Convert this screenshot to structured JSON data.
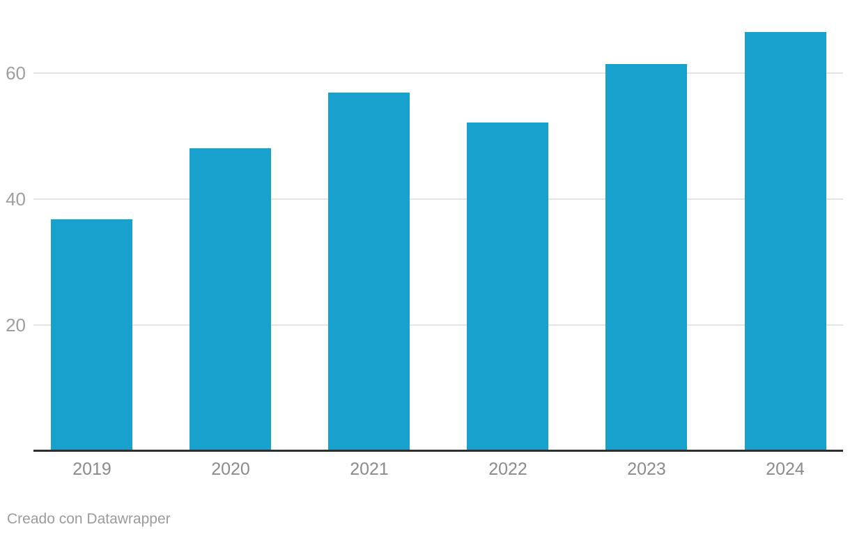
{
  "chart_data": {
    "type": "bar",
    "title": "",
    "xlabel": "",
    "ylabel": "",
    "categories": [
      "2019",
      "2020",
      "2021",
      "2022",
      "2023",
      "2024"
    ],
    "values": [
      36.7,
      48.0,
      56.8,
      52.1,
      61.4,
      66.5
    ],
    "ylim": [
      0,
      68
    ],
    "yticks": [
      20,
      40,
      60
    ],
    "grid": true,
    "legend": "none",
    "bar_color": "#18a1cd"
  },
  "colors": {
    "bar": "#18a1cd",
    "gridline": "#e4e4e4",
    "axis_line": "#2e2e2e",
    "x_tick_label": "#8b8b8b",
    "y_tick_label": "#9e9e9e",
    "footer_text": "#9b9b9b",
    "background": "#ffffff"
  },
  "footer": {
    "attribution": "Creado con Datawrapper"
  }
}
